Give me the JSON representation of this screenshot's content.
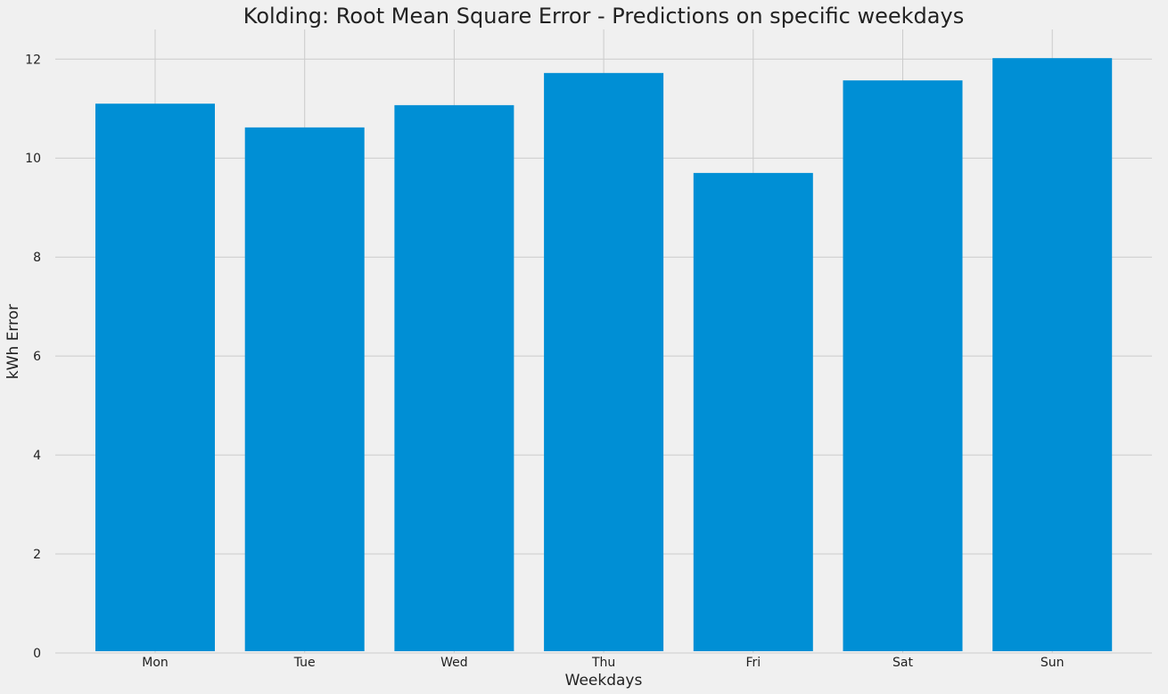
{
  "chart_data": {
    "type": "bar",
    "title": "Kolding: Root Mean Square Error - Predictions on specific weekdays",
    "xlabel": "Weekdays",
    "ylabel": "kWh Error",
    "categories": [
      "Mon",
      "Tue",
      "Wed",
      "Thu",
      "Fri",
      "Sat",
      "Sun"
    ],
    "values": [
      11.1,
      10.62,
      11.07,
      11.72,
      9.7,
      11.57,
      12.02
    ],
    "ylim": [
      0,
      12.6
    ],
    "yticks": [
      0,
      2,
      4,
      6,
      8,
      10,
      12
    ],
    "grid": true,
    "bar_color": "#008fd5",
    "background_color": "#f0f0f0",
    "grid_color": "#cbcbcb"
  }
}
